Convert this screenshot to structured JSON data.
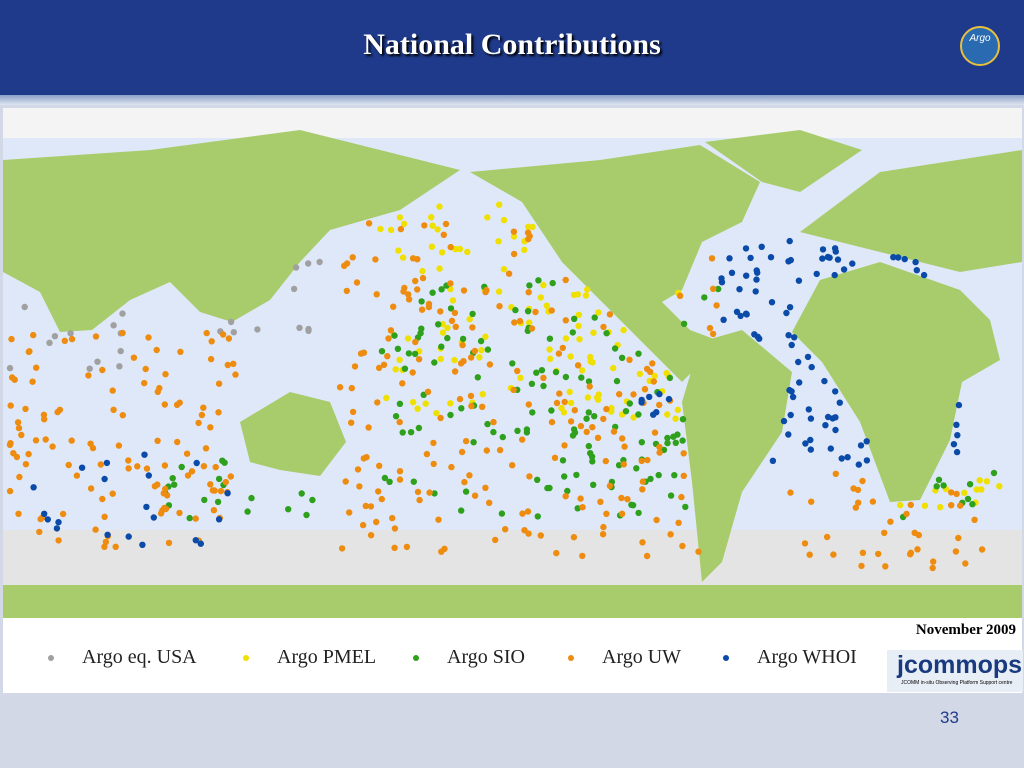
{
  "header": {
    "title": "National Contributions",
    "badge": "Argo"
  },
  "legend": {
    "items": [
      {
        "label": "Argo eq. USA",
        "color": "#a0a0a0"
      },
      {
        "label": "Argo PMEL",
        "color": "#f0e000"
      },
      {
        "label": "Argo SIO",
        "color": "#2ea01c"
      },
      {
        "label": "Argo UW",
        "color": "#ee8c10"
      },
      {
        "label": "Argo WHOI",
        "color": "#0a4aa8"
      }
    ]
  },
  "date": "November 2009",
  "logo": {
    "name": "jcommops",
    "subtitle": "JCOMM in-situ Observing Platform Support centre"
  },
  "page_number": "33"
}
